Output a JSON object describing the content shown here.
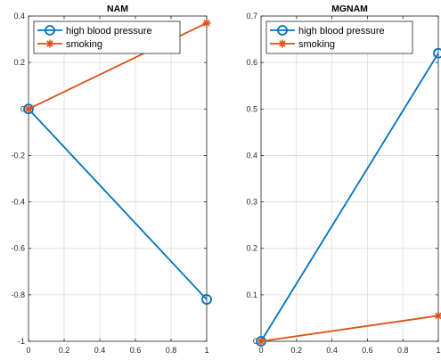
{
  "colors": {
    "series1": "#0072BD",
    "series2": "#D95319",
    "axis": "#262626",
    "grid": "#dcdcdc"
  },
  "chart_data": [
    {
      "type": "line",
      "title": "NAM",
      "xlabel": "",
      "ylabel": "",
      "xlim": [
        0,
        1
      ],
      "ylim": [
        -1,
        0.4
      ],
      "grid": true,
      "legend_position": "top-left",
      "xticks": [
        0,
        0.2,
        0.4,
        0.6,
        0.8,
        1
      ],
      "xtick_labels": [
        "0",
        "0.2",
        "0.4",
        "0.6",
        "0.8",
        "1"
      ],
      "yticks": [
        -1,
        -0.8,
        -0.6,
        -0.4,
        -0.2,
        0,
        0.2,
        0.4
      ],
      "ytick_labels": [
        "-1",
        "-0.8",
        "-0.6",
        "-0.4",
        "-0.2",
        "0",
        "0.2",
        "0.4"
      ],
      "series": [
        {
          "name": "high blood pressure",
          "marker": "circle",
          "color": "#0072BD",
          "x": [
            0,
            1
          ],
          "y": [
            0,
            -0.82
          ]
        },
        {
          "name": "smoking",
          "marker": "asterisk",
          "color": "#D95319",
          "x": [
            0,
            1
          ],
          "y": [
            0,
            0.37
          ]
        }
      ]
    },
    {
      "type": "line",
      "title": "MGNAM",
      "xlabel": "",
      "ylabel": "",
      "xlim": [
        0,
        1
      ],
      "ylim": [
        0,
        0.7
      ],
      "grid": true,
      "legend_position": "top-left",
      "xticks": [
        0,
        0.2,
        0.4,
        0.6,
        0.8,
        1
      ],
      "xtick_labels": [
        "0",
        "0.2",
        "0.4",
        "0.6",
        "0.8",
        "1"
      ],
      "yticks": [
        0,
        0.1,
        0.2,
        0.3,
        0.4,
        0.5,
        0.6,
        0.7
      ],
      "ytick_labels": [
        "0",
        "0.1",
        "0.2",
        "0.3",
        "0.4",
        "0.5",
        "0.6",
        "0.7"
      ],
      "series": [
        {
          "name": "high blood pressure",
          "marker": "circle",
          "color": "#0072BD",
          "x": [
            0,
            1
          ],
          "y": [
            0,
            0.62
          ]
        },
        {
          "name": "smoking",
          "marker": "asterisk",
          "color": "#D95319",
          "x": [
            0,
            1
          ],
          "y": [
            0,
            0.055
          ]
        }
      ]
    }
  ]
}
